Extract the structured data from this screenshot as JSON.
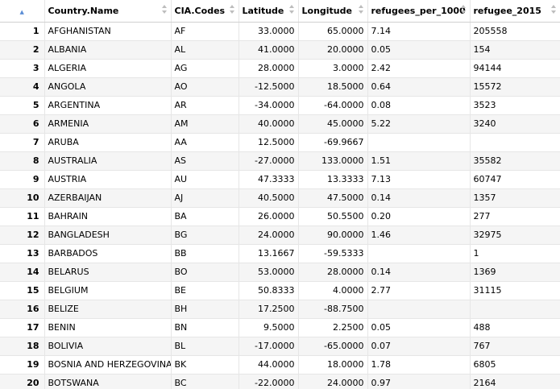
{
  "columns": {
    "country_name": "Country.Name",
    "cia_codes": "CIA.Codes",
    "latitude": "Latitude",
    "longitude": "Longitude",
    "refugees_per_1000": "refugees_per_1000",
    "refugee_2015": "refugee_2015"
  },
  "sort": {
    "column": "index",
    "direction": "ascending",
    "icon": "sort-ascending-icon"
  },
  "rows": [
    {
      "idx": "1",
      "name": "AFGHANISTAN",
      "code": "AF",
      "lat": "33.0000",
      "lon": "65.0000",
      "rpt": "7.14",
      "r15": "205558"
    },
    {
      "idx": "2",
      "name": "ALBANIA",
      "code": "AL",
      "lat": "41.0000",
      "lon": "20.0000",
      "rpt": "0.05",
      "r15": "154"
    },
    {
      "idx": "3",
      "name": "ALGERIA",
      "code": "AG",
      "lat": "28.0000",
      "lon": "3.0000",
      "rpt": "2.42",
      "r15": "94144"
    },
    {
      "idx": "4",
      "name": "ANGOLA",
      "code": "AO",
      "lat": "-12.5000",
      "lon": "18.5000",
      "rpt": "0.64",
      "r15": "15572"
    },
    {
      "idx": "5",
      "name": "ARGENTINA",
      "code": "AR",
      "lat": "-34.0000",
      "lon": "-64.0000",
      "rpt": "0.08",
      "r15": "3523"
    },
    {
      "idx": "6",
      "name": "ARMENIA",
      "code": "AM",
      "lat": "40.0000",
      "lon": "45.0000",
      "rpt": "5.22",
      "r15": "3240"
    },
    {
      "idx": "7",
      "name": "ARUBA",
      "code": "AA",
      "lat": "12.5000",
      "lon": "-69.9667",
      "rpt": "",
      "r15": ""
    },
    {
      "idx": "8",
      "name": "AUSTRALIA",
      "code": "AS",
      "lat": "-27.0000",
      "lon": "133.0000",
      "rpt": "1.51",
      "r15": "35582"
    },
    {
      "idx": "9",
      "name": "AUSTRIA",
      "code": "AU",
      "lat": "47.3333",
      "lon": "13.3333",
      "rpt": "7.13",
      "r15": "60747"
    },
    {
      "idx": "10",
      "name": "AZERBAIJAN",
      "code": "AJ",
      "lat": "40.5000",
      "lon": "47.5000",
      "rpt": "0.14",
      "r15": "1357"
    },
    {
      "idx": "11",
      "name": "BAHRAIN",
      "code": "BA",
      "lat": "26.0000",
      "lon": "50.5500",
      "rpt": "0.20",
      "r15": "277"
    },
    {
      "idx": "12",
      "name": "BANGLADESH",
      "code": "BG",
      "lat": "24.0000",
      "lon": "90.0000",
      "rpt": "1.46",
      "r15": "32975"
    },
    {
      "idx": "13",
      "name": "BARBADOS",
      "code": "BB",
      "lat": "13.1667",
      "lon": "-59.5333",
      "rpt": "",
      "r15": "1"
    },
    {
      "idx": "14",
      "name": "BELARUS",
      "code": "BO",
      "lat": "53.0000",
      "lon": "28.0000",
      "rpt": "0.14",
      "r15": "1369"
    },
    {
      "idx": "15",
      "name": "BELGIUM",
      "code": "BE",
      "lat": "50.8333",
      "lon": "4.0000",
      "rpt": "2.77",
      "r15": "31115"
    },
    {
      "idx": "16",
      "name": "BELIZE",
      "code": "BH",
      "lat": "17.2500",
      "lon": "-88.7500",
      "rpt": "",
      "r15": ""
    },
    {
      "idx": "17",
      "name": "BENIN",
      "code": "BN",
      "lat": "9.5000",
      "lon": "2.2500",
      "rpt": "0.05",
      "r15": "488"
    },
    {
      "idx": "18",
      "name": "BOLIVIA",
      "code": "BL",
      "lat": "-17.0000",
      "lon": "-65.0000",
      "rpt": "0.07",
      "r15": "767"
    },
    {
      "idx": "19",
      "name": "BOSNIA AND HERZEGOVINA",
      "code": "BK",
      "lat": "44.0000",
      "lon": "18.0000",
      "rpt": "1.78",
      "r15": "6805"
    },
    {
      "idx": "20",
      "name": "BOTSWANA",
      "code": "BC",
      "lat": "-22.0000",
      "lon": "24.0000",
      "rpt": "0.97",
      "r15": "2164"
    }
  ]
}
